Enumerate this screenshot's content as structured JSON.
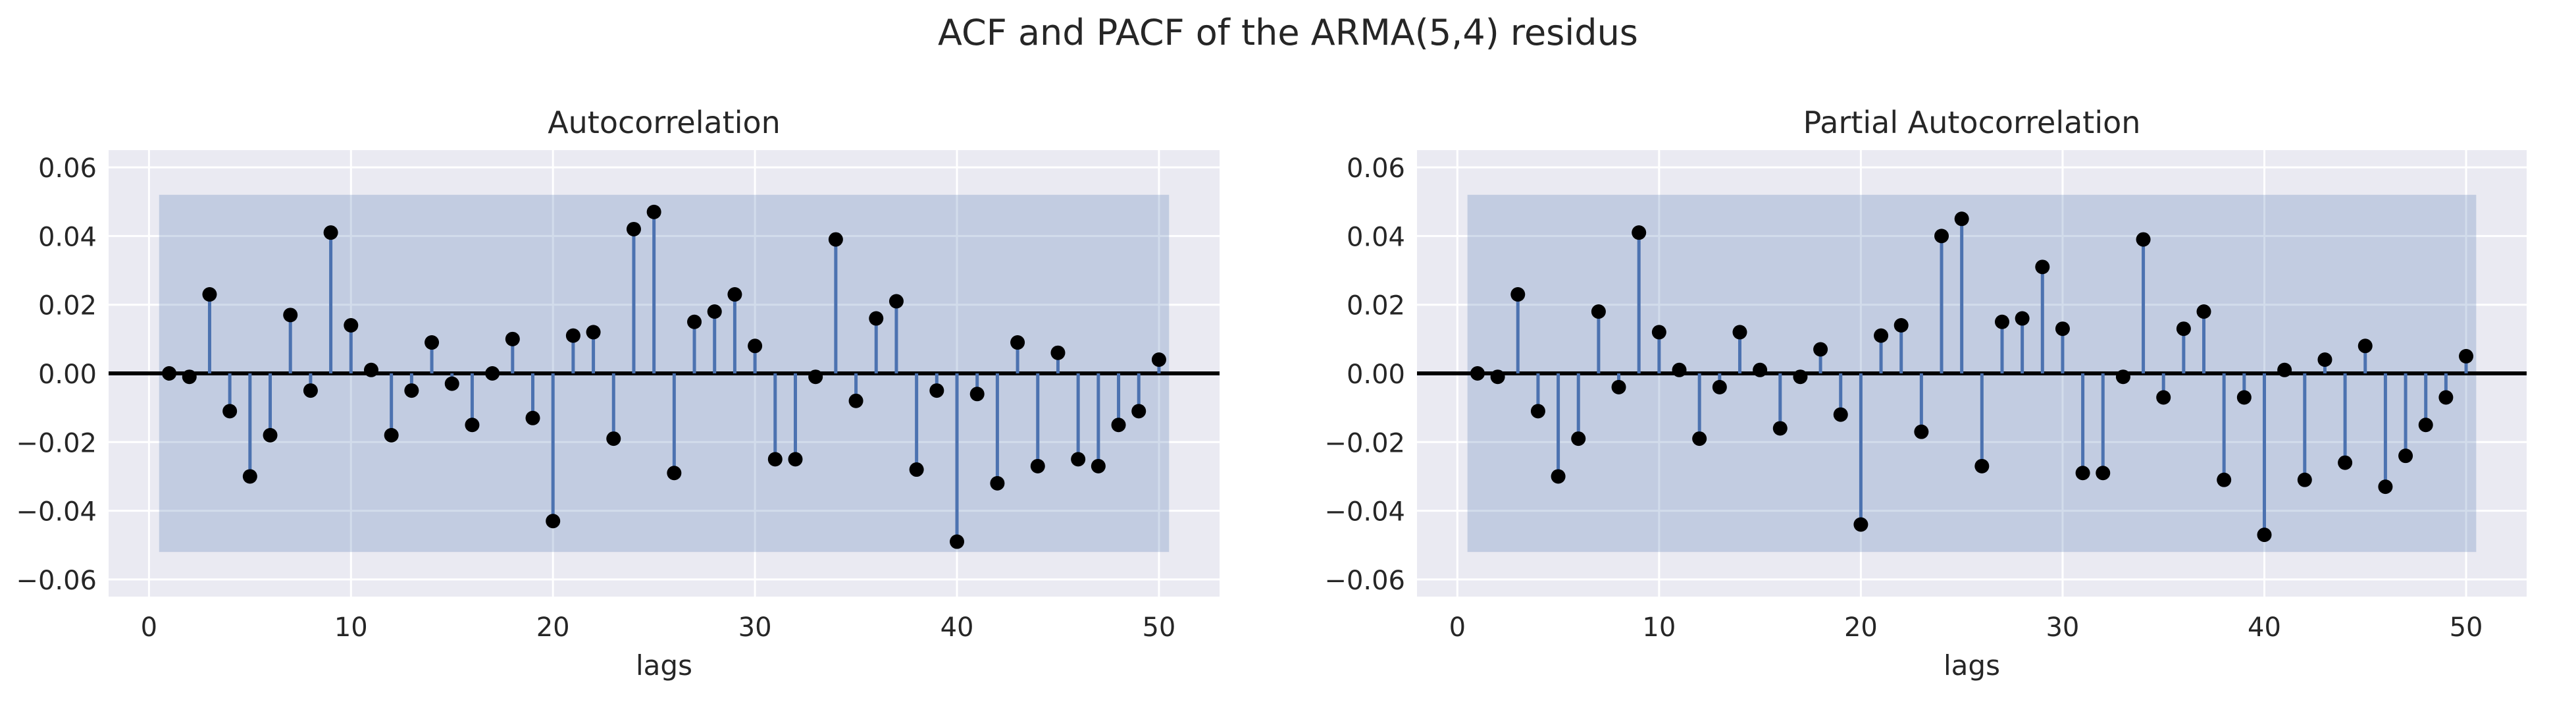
{
  "figure": {
    "title": "ACF and PACF of the ARMA(5,4) residus"
  },
  "colors": {
    "plot_bg": "#EAEAF2",
    "grid": "#ffffff",
    "stem": "#4C72B0",
    "marker": "#000000",
    "band": "#4C72B0",
    "zero_line": "#000000"
  },
  "chart_data": [
    {
      "type": "scatter",
      "title": "Autocorrelation",
      "xlabel": "lags",
      "ylabel": "",
      "xlim": [
        -2,
        53
      ],
      "ylim": [
        -0.065,
        0.065
      ],
      "xticks": [
        0,
        10,
        20,
        30,
        40,
        50
      ],
      "yticks": [
        -0.06,
        -0.04,
        -0.02,
        0.0,
        0.02,
        0.04,
        0.06
      ],
      "ytick_labels": [
        "−0.06",
        "−0.04",
        "−0.02",
        "0.00",
        "0.02",
        "0.04",
        "0.06"
      ],
      "grid": true,
      "confidence_band": [
        -0.052,
        0.052
      ],
      "x": [
        1,
        2,
        3,
        4,
        5,
        6,
        7,
        8,
        9,
        10,
        11,
        12,
        13,
        14,
        15,
        16,
        17,
        18,
        19,
        20,
        21,
        22,
        23,
        24,
        25,
        26,
        27,
        28,
        29,
        30,
        31,
        32,
        33,
        34,
        35,
        36,
        37,
        38,
        39,
        40,
        41,
        42,
        43,
        44,
        45,
        46,
        47,
        48,
        49,
        50
      ],
      "values": [
        0.0,
        -0.001,
        0.023,
        -0.011,
        -0.03,
        -0.018,
        0.017,
        -0.005,
        0.041,
        0.014,
        0.001,
        -0.018,
        -0.005,
        0.009,
        -0.003,
        -0.015,
        0.0,
        0.01,
        -0.013,
        -0.043,
        0.011,
        0.012,
        -0.019,
        0.042,
        0.047,
        -0.029,
        0.015,
        0.018,
        0.023,
        0.008,
        -0.025,
        -0.025,
        -0.001,
        0.039,
        -0.008,
        0.016,
        0.021,
        -0.028,
        -0.005,
        -0.049,
        -0.006,
        -0.032,
        0.009,
        -0.027,
        0.006,
        -0.025,
        -0.027,
        -0.015,
        -0.011,
        0.004
      ]
    },
    {
      "type": "scatter",
      "title": "Partial Autocorrelation",
      "xlabel": "lags",
      "ylabel": "",
      "xlim": [
        -2,
        53
      ],
      "ylim": [
        -0.065,
        0.065
      ],
      "xticks": [
        0,
        10,
        20,
        30,
        40,
        50
      ],
      "yticks": [
        -0.06,
        -0.04,
        -0.02,
        0.0,
        0.02,
        0.04,
        0.06
      ],
      "ytick_labels": [
        "−0.06",
        "−0.04",
        "−0.02",
        "0.00",
        "0.02",
        "0.04",
        "0.06"
      ],
      "grid": true,
      "confidence_band": [
        -0.052,
        0.052
      ],
      "x": [
        1,
        2,
        3,
        4,
        5,
        6,
        7,
        8,
        9,
        10,
        11,
        12,
        13,
        14,
        15,
        16,
        17,
        18,
        19,
        20,
        21,
        22,
        23,
        24,
        25,
        26,
        27,
        28,
        29,
        30,
        31,
        32,
        33,
        34,
        35,
        36,
        37,
        38,
        39,
        40,
        41,
        42,
        43,
        44,
        45,
        46,
        47,
        48,
        49,
        50
      ],
      "values": [
        0.0,
        -0.001,
        0.023,
        -0.011,
        -0.03,
        -0.019,
        0.018,
        -0.004,
        0.041,
        0.012,
        0.001,
        -0.019,
        -0.004,
        0.012,
        0.001,
        -0.016,
        -0.001,
        0.007,
        -0.012,
        -0.044,
        0.011,
        0.014,
        -0.017,
        0.04,
        0.045,
        -0.027,
        0.015,
        0.016,
        0.031,
        0.013,
        -0.029,
        -0.029,
        -0.001,
        0.039,
        -0.007,
        0.013,
        0.018,
        -0.031,
        -0.007,
        -0.047,
        0.001,
        -0.031,
        0.004,
        -0.026,
        0.008,
        -0.033,
        -0.024,
        -0.015,
        -0.007,
        0.005
      ]
    }
  ]
}
